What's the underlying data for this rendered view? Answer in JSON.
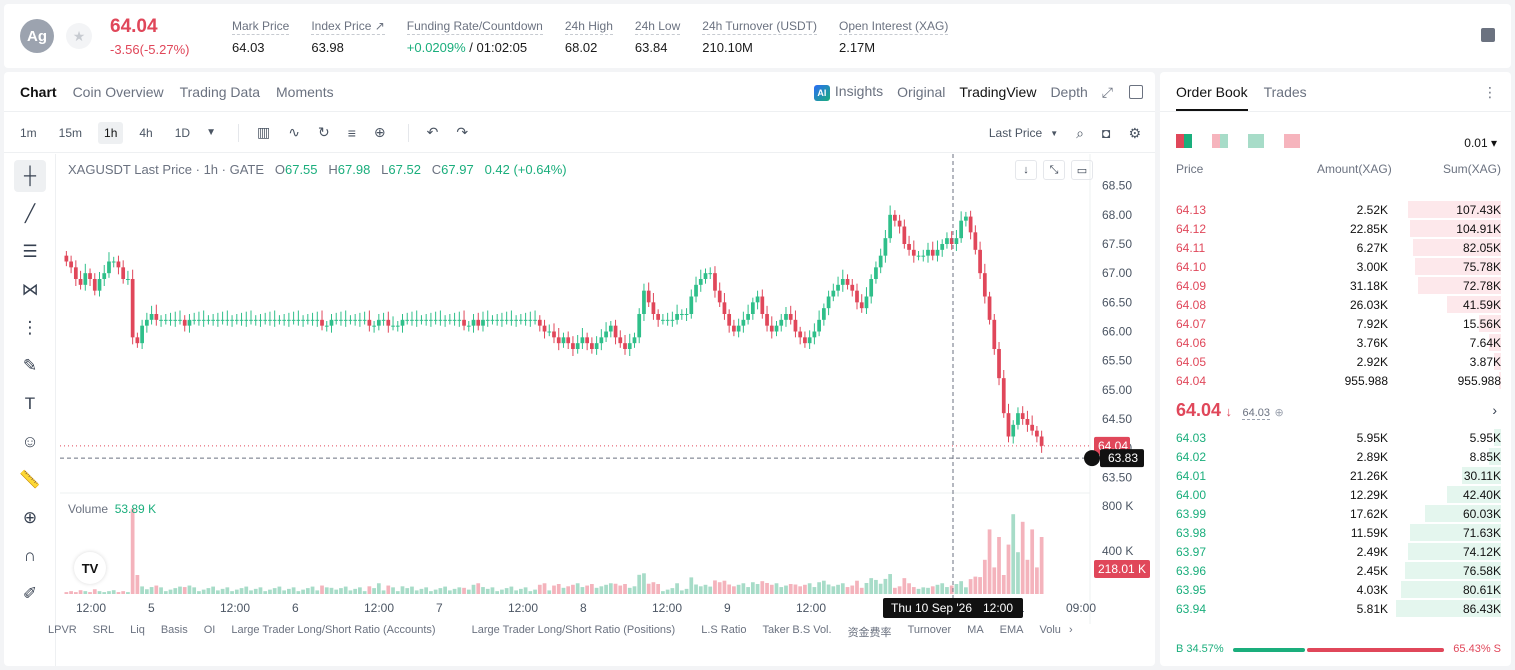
{
  "ticker": {
    "avatar": "Ag",
    "price": "64.04",
    "change": "-3.56(-5.27%)",
    "stats": [
      {
        "label": "Mark Price",
        "value": "64.03"
      },
      {
        "label": "Index Price ↗",
        "value": "63.98"
      },
      {
        "label": "Funding Rate/Countdown",
        "value_green": "+0.0209%",
        "value_rest": " / 01:02:05"
      },
      {
        "label": "24h High",
        "value": "68.02"
      },
      {
        "label": "24h Low",
        "value": "63.84"
      },
      {
        "label": "24h Turnover (USDT)",
        "value": "210.10M"
      },
      {
        "label": "Open Interest (XAG)",
        "value": "2.17M"
      }
    ]
  },
  "chart_tabs": [
    "Chart",
    "Coin Overview",
    "Trading Data",
    "Moments"
  ],
  "view_tabs": {
    "insights": "Insights",
    "original": "Original",
    "tradingview": "TradingView",
    "depth": "Depth"
  },
  "timeframes": [
    "1m",
    "15m",
    "1h",
    "4h",
    "1D"
  ],
  "active_timeframe": "1h",
  "last_price_label": "Last Price",
  "legend": {
    "symbol": "XAGUSDT Last Price · 1h · GATE",
    "o": "67.55",
    "h": "67.98",
    "l": "67.52",
    "c": "67.97",
    "chg": "0.42 (+0.64%)"
  },
  "volume_legend": {
    "label": "Volume",
    "value": "53.89 K"
  },
  "chart_data": {
    "type": "candlestick",
    "y_ticks": [
      "68.50",
      "68.00",
      "67.50",
      "67.00",
      "66.50",
      "66.00",
      "65.50",
      "65.00",
      "64.50",
      "64.00",
      "63.50"
    ],
    "y_range": [
      63.3,
      68.7
    ],
    "vol_ticks": [
      "800 K",
      "400 K"
    ],
    "x_ticks": [
      "12:00",
      "5",
      "12:00",
      "6",
      "12:00",
      "7",
      "12:00",
      "8",
      "12:00",
      "9",
      "12:00",
      "10",
      "12:00",
      "11",
      "09:00"
    ],
    "last_price_label": "64.04",
    "cursor_price_label": "63.83",
    "cursor_volume_label": "218.01 K",
    "crosshair_time": "Thu 10 Sep '26",
    "crosshair_hour": "12:00",
    "candles_close": [
      67.2,
      67.1,
      66.9,
      66.8,
      67.0,
      66.9,
      66.7,
      66.9,
      67.0,
      67.2,
      67.2,
      67.1,
      66.9,
      66.9,
      65.9,
      65.8,
      66.1,
      66.2,
      66.3,
      66.2,
      66.2,
      66.2,
      66.2,
      66.2,
      66.2,
      66.1,
      66.2,
      66.2,
      66.2,
      66.2,
      66.2,
      66.2,
      66.2,
      66.2,
      66.2,
      66.2,
      66.2,
      66.2,
      66.2,
      66.2,
      66.2,
      66.2,
      66.2,
      66.2,
      66.2,
      66.2,
      66.2,
      66.2,
      66.2,
      66.2,
      66.2,
      66.2,
      66.2,
      66.2,
      66.1,
      66.1,
      66.2,
      66.2,
      66.2,
      66.2,
      66.2,
      66.2,
      66.2,
      66.2,
      66.1,
      66.1,
      66.2,
      66.2,
      66.1,
      66.1,
      66.1,
      66.2,
      66.2,
      66.2,
      66.2,
      66.2,
      66.2,
      66.2,
      66.2,
      66.2,
      66.2,
      66.2,
      66.2,
      66.2,
      66.1,
      66.1,
      66.2,
      66.1,
      66.2,
      66.2,
      66.2,
      66.2,
      66.2,
      66.2,
      66.2,
      66.2,
      66.2,
      66.2,
      66.2,
      66.2,
      66.1,
      66.0,
      66.0,
      65.9,
      65.8,
      65.9,
      65.8,
      65.7,
      65.8,
      65.9,
      65.8,
      65.7,
      65.8,
      65.9,
      66.0,
      66.1,
      65.9,
      65.8,
      65.7,
      65.8,
      65.9,
      66.3,
      66.7,
      66.5,
      66.3,
      66.2,
      66.2,
      66.2,
      66.2,
      66.3,
      66.3,
      66.3,
      66.6,
      66.8,
      66.9,
      67.0,
      67.0,
      66.7,
      66.5,
      66.3,
      66.1,
      66.0,
      66.1,
      66.2,
      66.3,
      66.5,
      66.6,
      66.3,
      66.1,
      66.0,
      66.1,
      66.2,
      66.3,
      66.2,
      66.0,
      65.9,
      65.8,
      65.9,
      66.0,
      66.2,
      66.4,
      66.6,
      66.7,
      66.8,
      66.9,
      66.8,
      66.7,
      66.5,
      66.4,
      66.6,
      66.9,
      67.1,
      67.3,
      67.6,
      68.0,
      67.9,
      67.8,
      67.5,
      67.4,
      67.3,
      67.3,
      67.3,
      67.4,
      67.3,
      67.4,
      67.5,
      67.6,
      67.5,
      67.6,
      67.9,
      67.97,
      67.7,
      67.4,
      67.0,
      66.6,
      66.2,
      65.7,
      65.2,
      64.6,
      64.2,
      64.4,
      64.6,
      64.5,
      64.4,
      64.3,
      64.2,
      64.04
    ]
  },
  "indicators": [
    "LPVR",
    "SRL",
    "Liq",
    "Basis",
    "OI",
    "Large Trader Long/Short Ratio (Accounts)",
    "Large Trader Long/Short Ratio (Positions)",
    "L.S Ratio",
    "Taker B.S Vol.",
    "资金费率",
    "Turnover",
    "MA",
    "EMA",
    "Volu"
  ],
  "order_book": {
    "tabs": [
      "Order Book",
      "Trades"
    ],
    "precision": "0.01",
    "headers": {
      "price": "Price",
      "amount": "Amount(XAG)",
      "sum": "Sum(XAG)"
    },
    "asks": [
      {
        "p": "64.13",
        "a": "2.52K",
        "s": "107.43K",
        "d": 0.38
      },
      {
        "p": "64.12",
        "a": "22.85K",
        "s": "104.91K",
        "d": 0.37
      },
      {
        "p": "64.11",
        "a": "6.27K",
        "s": "82.05K",
        "d": 0.36
      },
      {
        "p": "64.10",
        "a": "3.00K",
        "s": "75.78K",
        "d": 0.35
      },
      {
        "p": "64.09",
        "a": "31.18K",
        "s": "72.78K",
        "d": 0.34
      },
      {
        "p": "64.08",
        "a": "26.03K",
        "s": "41.59K",
        "d": 0.22
      },
      {
        "p": "64.07",
        "a": "7.92K",
        "s": "15.56K",
        "d": 0.09
      },
      {
        "p": "64.06",
        "a": "3.76K",
        "s": "7.64K",
        "d": 0.05
      },
      {
        "p": "64.05",
        "a": "2.92K",
        "s": "3.87K",
        "d": 0.03
      },
      {
        "p": "64.04",
        "a": "955.988",
        "s": "955.988",
        "d": 0.01
      }
    ],
    "mid_price": "64.04",
    "mid_mark": "64.03",
    "bids": [
      {
        "p": "64.03",
        "a": "5.95K",
        "s": "5.95K",
        "d": 0.03
      },
      {
        "p": "64.02",
        "a": "2.89K",
        "s": "8.85K",
        "d": 0.05
      },
      {
        "p": "64.01",
        "a": "21.26K",
        "s": "30.11K",
        "d": 0.16
      },
      {
        "p": "64.00",
        "a": "12.29K",
        "s": "42.40K",
        "d": 0.22
      },
      {
        "p": "63.99",
        "a": "17.62K",
        "s": "60.03K",
        "d": 0.31
      },
      {
        "p": "63.98",
        "a": "11.59K",
        "s": "71.63K",
        "d": 0.37
      },
      {
        "p": "63.97",
        "a": "2.49K",
        "s": "74.12K",
        "d": 0.38
      },
      {
        "p": "63.96",
        "a": "2.45K",
        "s": "76.58K",
        "d": 0.39
      },
      {
        "p": "63.95",
        "a": "4.03K",
        "s": "80.61K",
        "d": 0.41
      },
      {
        "p": "63.94",
        "a": "5.81K",
        "s": "86.43K",
        "d": 0.43
      }
    ],
    "buy_ratio": "B 34.57%",
    "sell_ratio": "65.43% S"
  }
}
